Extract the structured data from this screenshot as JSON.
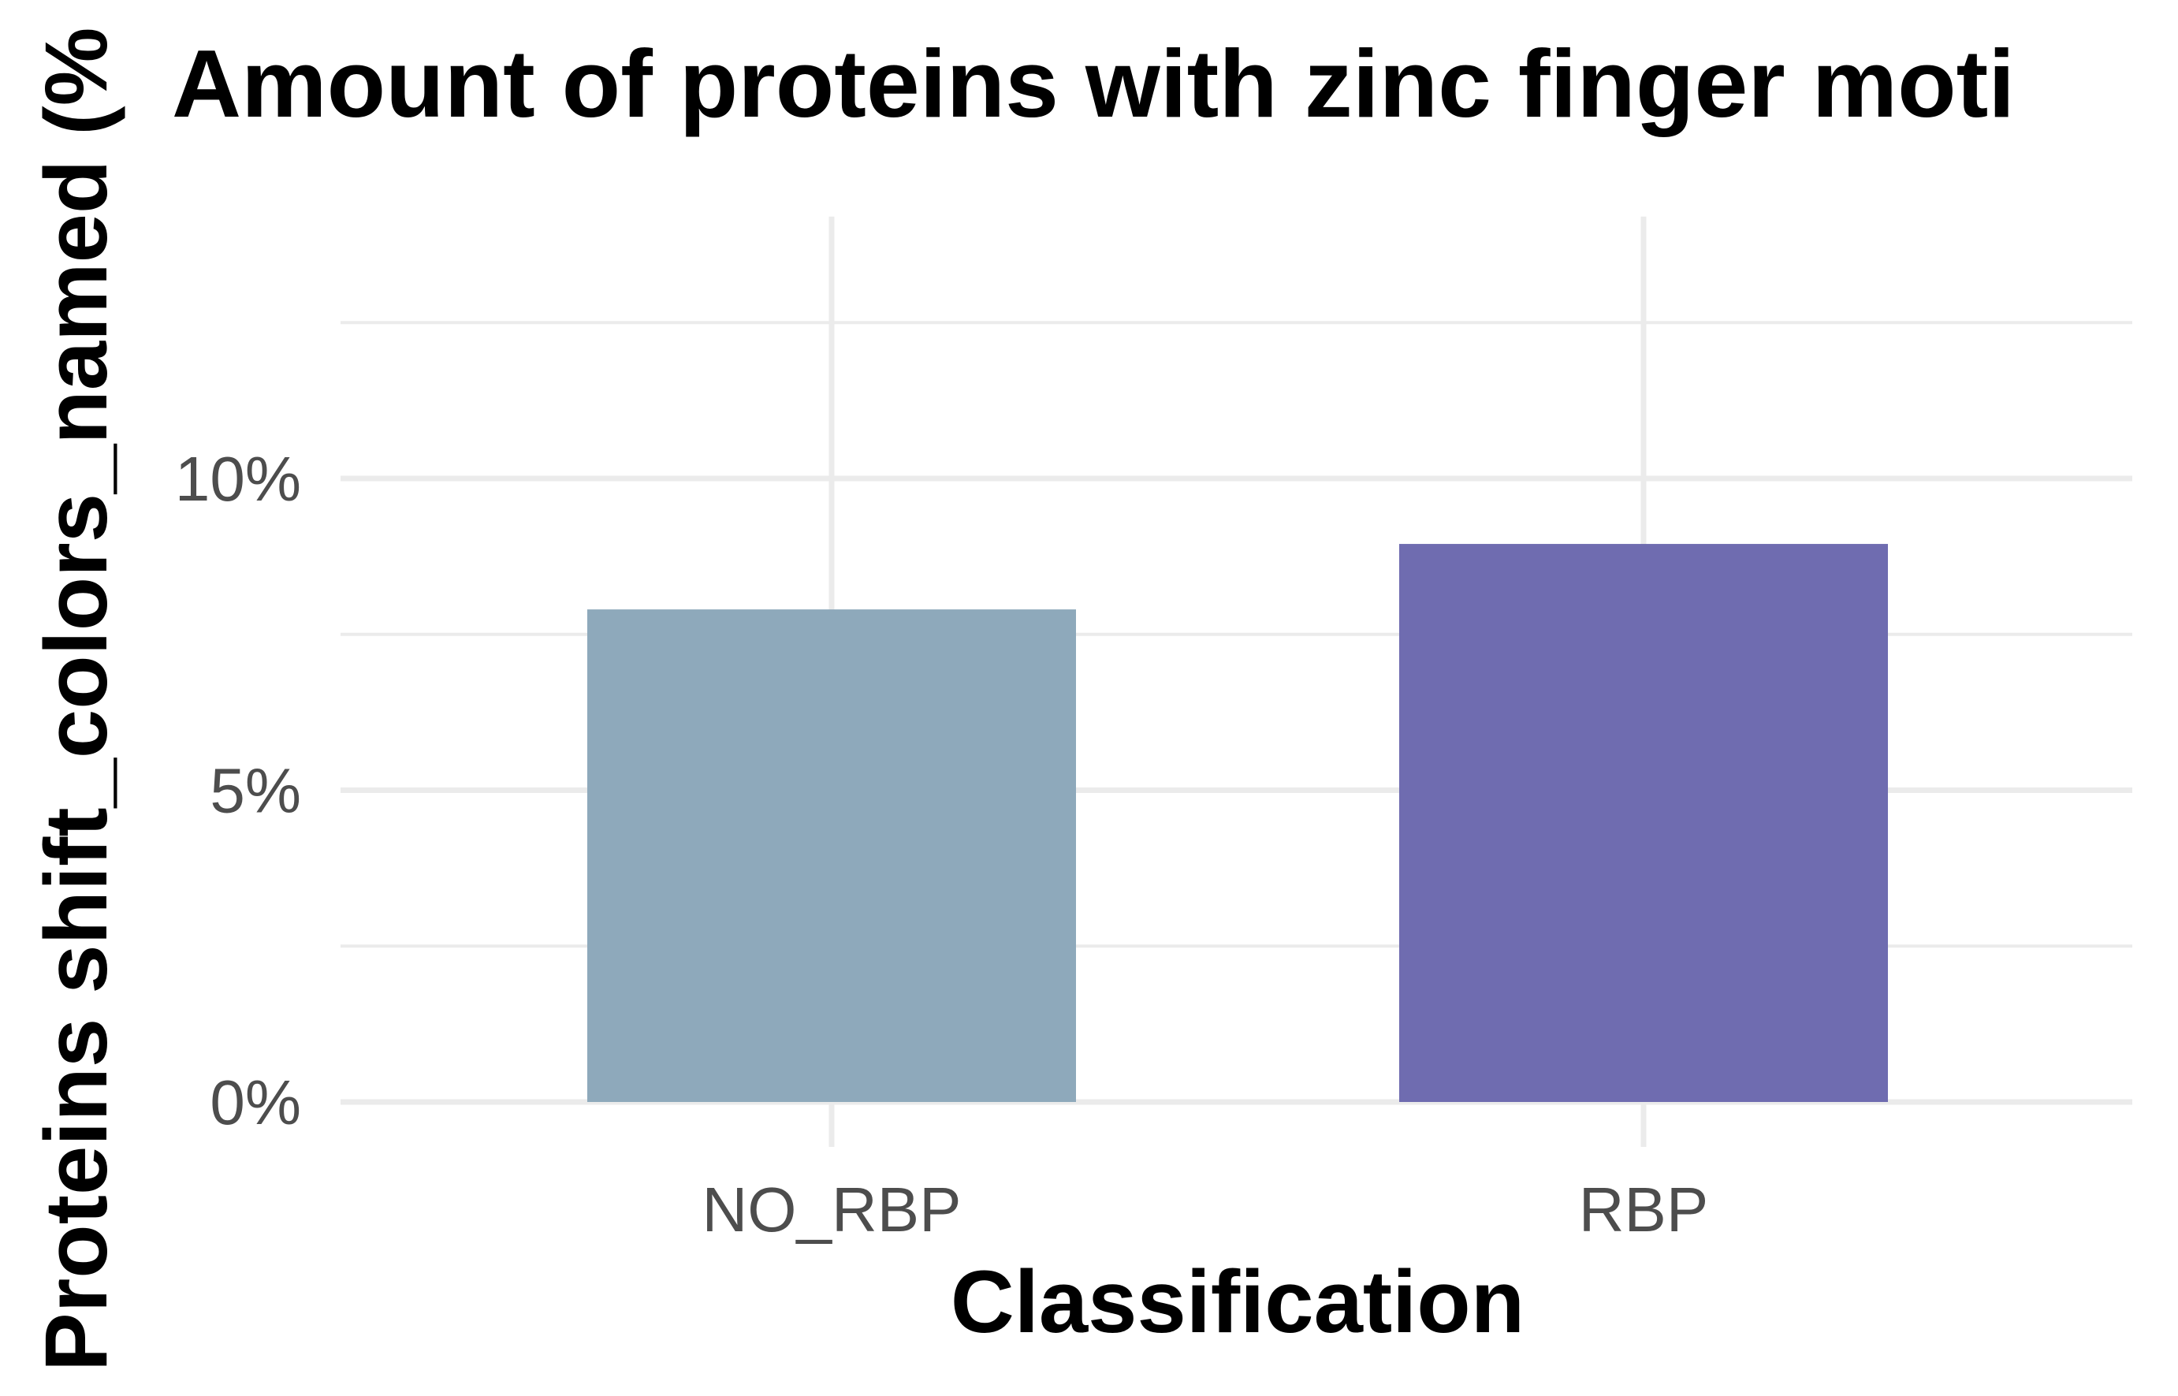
{
  "chart_data": {
    "type": "bar",
    "title": "Amount of proteins with zinc finger moti",
    "xlabel": "Classification",
    "ylabel": "Proteins shift_colors_named (%",
    "categories": [
      "NO_RBP",
      "RBP"
    ],
    "values": [
      7.9,
      8.95
    ],
    "bar_colors": [
      "#8ea9bb",
      "#6f6cb0"
    ],
    "ylim": [
      0,
      14.2
    ],
    "yticks": [
      {
        "value": 0,
        "label": "0%"
      },
      {
        "value": 5,
        "label": "5%"
      },
      {
        "value": 10,
        "label": "10%"
      }
    ],
    "minor_yticks": [
      2.5,
      7.5,
      12.5
    ],
    "grid": true
  }
}
